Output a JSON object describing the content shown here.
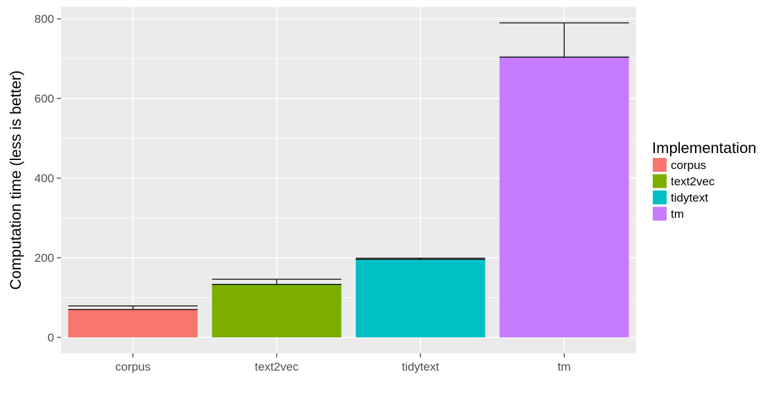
{
  "chart_data": {
    "type": "bar",
    "title": "",
    "xlabel": "",
    "ylabel": "Computation time (less is better)",
    "categories": [
      "corpus",
      "text2vec",
      "tidytext",
      "tm"
    ],
    "values": [
      70,
      133,
      196,
      704
    ],
    "error_upper": [
      79,
      146,
      199,
      790
    ],
    "colors": [
      "#F8766D",
      "#7CAE00",
      "#00BFC4",
      "#C77CFF"
    ],
    "ylim": [
      -40,
      830
    ],
    "yticks": [
      0,
      200,
      400,
      600,
      800
    ],
    "grid": true,
    "legend": {
      "title": "Implementation",
      "placement": "right",
      "entries": [
        "corpus",
        "text2vec",
        "tidytext",
        "tm"
      ]
    }
  }
}
